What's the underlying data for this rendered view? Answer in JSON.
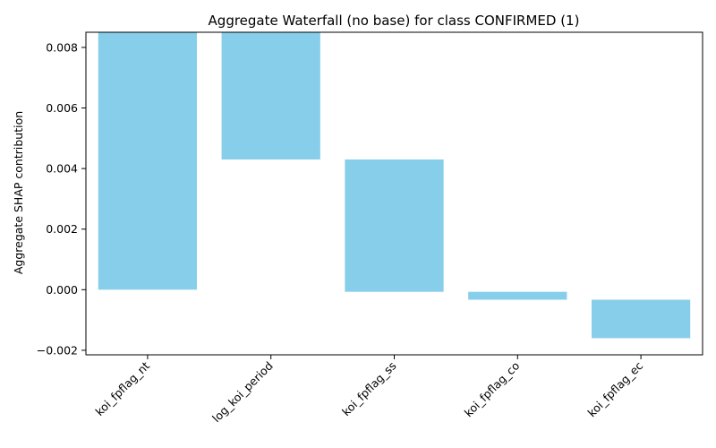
{
  "chart_data": {
    "type": "bar",
    "subtype": "waterfall",
    "title": "Aggregate Waterfall (no base) for class CONFIRMED (1)",
    "xlabel": "",
    "ylabel": "Aggregate SHAP contribution",
    "categories": [
      "koi_fpflag_nt",
      "log_koi_period",
      "koi_fpflag_ss",
      "koi_fpflag_co",
      "koi_fpflag_ec"
    ],
    "bars": [
      {
        "category": "koi_fpflag_nt",
        "start": 0.0,
        "end": 0.0085
      },
      {
        "category": "log_koi_period",
        "start": 0.0043,
        "end": 0.0085
      },
      {
        "category": "koi_fpflag_ss",
        "start": -7e-05,
        "end": 0.0043
      },
      {
        "category": "koi_fpflag_co",
        "start": -0.00033,
        "end": -7e-05
      },
      {
        "category": "koi_fpflag_ec",
        "start": -0.0016,
        "end": -0.00033
      }
    ],
    "ylim": [
      -0.00215,
      0.0085
    ],
    "yticks": [
      -0.002,
      0.0,
      0.002,
      0.004,
      0.006,
      0.008
    ],
    "ytick_labels": [
      "−0.002",
      "0.000",
      "0.002",
      "0.004",
      "0.006",
      "0.008"
    ],
    "bar_color": "#87ceeb",
    "grid": false,
    "legend": "none"
  }
}
